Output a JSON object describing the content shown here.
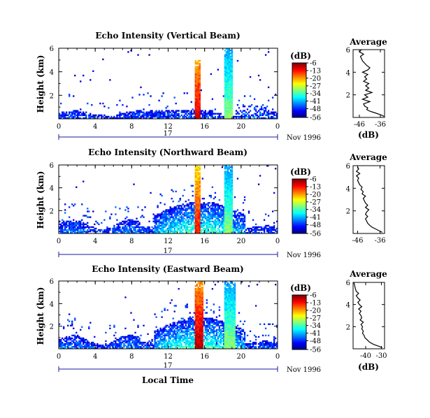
{
  "figure": {
    "xlabel": "Local Time",
    "date_label": "Nov 1996",
    "day_label": "17"
  },
  "chart_data": [
    {
      "type": "heatmap",
      "title": "Echo Intensity (Vertical Beam)",
      "ylabel": "Height (km)",
      "xlabel": "",
      "x_ticks": [
        "0",
        "4",
        "8",
        "12",
        "16",
        "20",
        "0"
      ],
      "y_ticks": [
        "2",
        "4",
        "6"
      ],
      "xlim": [
        0,
        24
      ],
      "ylim": [
        0,
        6
      ],
      "colorbar": {
        "unit": "(dB)",
        "ticks": [
          "-6",
          "-13",
          "-20",
          "-27",
          "-34",
          "-41",
          "-48",
          "-56"
        ],
        "range": [
          -56,
          -6
        ]
      },
      "scheme": "vertical",
      "strong_columns": [
        {
          "t0": 15.0,
          "t1": 15.6,
          "top": 5.0,
          "level": -10
        },
        {
          "t0": 18.2,
          "t1": 19.0,
          "top": 6.0,
          "level": -30
        }
      ]
    },
    {
      "type": "heatmap",
      "title": "Echo Intensity (Northward Beam)",
      "ylabel": "Height (km)",
      "xlabel": "",
      "x_ticks": [
        "0",
        "4",
        "8",
        "12",
        "16",
        "20",
        "0"
      ],
      "y_ticks": [
        "2",
        "4",
        "6"
      ],
      "xlim": [
        0,
        24
      ],
      "ylim": [
        0,
        6
      ],
      "colorbar": {
        "unit": "(dB)",
        "ticks": [
          "-6",
          "-13",
          "-20",
          "-27",
          "-34",
          "-41",
          "-48",
          "-56"
        ],
        "range": [
          -56,
          -6
        ]
      },
      "scheme": "oblique",
      "strong_columns": [
        {
          "t0": 15.0,
          "t1": 15.6,
          "top": 6.0,
          "level": -12
        },
        {
          "t0": 18.2,
          "t1": 19.0,
          "top": 6.0,
          "level": -30
        }
      ]
    },
    {
      "type": "heatmap",
      "title": "Echo Intensity (Eastward Beam)",
      "ylabel": "Height (km)",
      "xlabel": "",
      "x_ticks": [
        "0",
        "4",
        "8",
        "12",
        "16",
        "20",
        "0"
      ],
      "y_ticks": [
        "2",
        "4",
        "6"
      ],
      "xlim": [
        0,
        24
      ],
      "ylim": [
        0,
        6
      ],
      "colorbar": {
        "unit": "(dB)",
        "ticks": [
          "-6",
          "-13",
          "-20",
          "-27",
          "-34",
          "-41",
          "-48",
          "-56"
        ],
        "range": [
          -56,
          -6
        ]
      },
      "scheme": "oblique",
      "strong_columns": [
        {
          "t0": 15.0,
          "t1": 15.8,
          "top": 6.0,
          "level": -8
        },
        {
          "t0": 18.2,
          "t1": 19.4,
          "top": 6.0,
          "level": -30
        }
      ]
    },
    {
      "type": "line",
      "title": "Average",
      "xlabel": "(dB)",
      "ylabel": "",
      "x_ticks": [
        "-46",
        "-36"
      ],
      "x_tick_values": [
        -46,
        -36
      ],
      "y_ticks": [
        "2",
        "4",
        "6"
      ],
      "xlim": [
        -49,
        -34
      ],
      "ylim": [
        0,
        6
      ],
      "x": [
        -34.2,
        -36.0,
        -38.5,
        -41.0,
        -42.5,
        -42.0,
        -43.5,
        -44.0,
        -41.0,
        -44.5,
        -42.0,
        -43.5,
        -40.0,
        -43.0,
        -41.5,
        -43.0,
        -41.5,
        -44.0,
        -42.5,
        -43.5,
        -42.0,
        -44.5,
        -42.0,
        -41.0,
        -42.5,
        -43.5,
        -44.5,
        -45.0,
        -45.5,
        -44.0,
        -46.0,
        -45.0
      ],
      "y": [
        0.1,
        0.25,
        0.4,
        0.55,
        0.7,
        0.85,
        1.0,
        1.2,
        1.4,
        1.6,
        1.8,
        2.0,
        2.2,
        2.4,
        2.6,
        2.8,
        3.0,
        3.2,
        3.4,
        3.6,
        3.8,
        4.0,
        4.2,
        4.4,
        4.6,
        4.8,
        5.0,
        5.2,
        5.4,
        5.6,
        5.8,
        6.0
      ]
    },
    {
      "type": "line",
      "title": "Average",
      "xlabel": "(dB)",
      "ylabel": "",
      "x_ticks": [
        "-46",
        "-36"
      ],
      "x_tick_values": [
        -46,
        -36
      ],
      "y_ticks": [
        "2",
        "4",
        "6"
      ],
      "xlim": [
        -48,
        -34
      ],
      "ylim": [
        0,
        6
      ],
      "x": [
        -35.0,
        -36.5,
        -38.0,
        -39.5,
        -40.5,
        -41.5,
        -42.0,
        -42.5,
        -41.5,
        -42.5,
        -42.0,
        -41.0,
        -42.5,
        -41.5,
        -42.5,
        -43.0,
        -43.5,
        -42.5,
        -44.0,
        -43.5,
        -44.5,
        -44.0,
        -45.0,
        -45.5,
        -46.0,
        -45.5,
        -46.5,
        -45.0,
        -46.5,
        -45.5,
        -46.0
      ],
      "y": [
        0.1,
        0.25,
        0.4,
        0.55,
        0.7,
        0.9,
        1.1,
        1.3,
        1.5,
        1.7,
        1.9,
        2.1,
        2.3,
        2.5,
        2.7,
        2.9,
        3.1,
        3.3,
        3.5,
        3.7,
        3.9,
        4.1,
        4.3,
        4.5,
        4.7,
        4.9,
        5.1,
        5.3,
        5.5,
        5.7,
        5.9
      ]
    },
    {
      "type": "line",
      "title": "Average",
      "xlabel": "(dB)",
      "ylabel": "",
      "x_ticks": [
        "-40",
        "-30"
      ],
      "x_tick_values": [
        -40,
        -30
      ],
      "y_ticks": [
        "2",
        "4",
        "6"
      ],
      "xlim": [
        -48,
        -28
      ],
      "ylim": [
        0,
        6
      ],
      "x": [
        -29.5,
        -32.0,
        -35.0,
        -37.5,
        -39.0,
        -40.5,
        -41.0,
        -42.0,
        -41.5,
        -42.5,
        -42.0,
        -43.0,
        -41.5,
        -43.5,
        -42.5,
        -43.0,
        -44.0,
        -43.0,
        -44.5,
        -42.5,
        -44.0,
        -45.0,
        -43.5,
        -45.0,
        -46.0,
        -44.5,
        -46.0,
        -46.5,
        -47.0,
        -47.5
      ],
      "y": [
        0.1,
        0.25,
        0.4,
        0.6,
        0.8,
        1.0,
        1.2,
        1.4,
        1.6,
        1.8,
        2.0,
        2.2,
        2.4,
        2.6,
        2.8,
        3.0,
        3.2,
        3.4,
        3.6,
        3.8,
        4.0,
        4.2,
        4.4,
        4.6,
        4.8,
        5.0,
        5.2,
        5.4,
        5.7,
        6.0
      ]
    }
  ]
}
